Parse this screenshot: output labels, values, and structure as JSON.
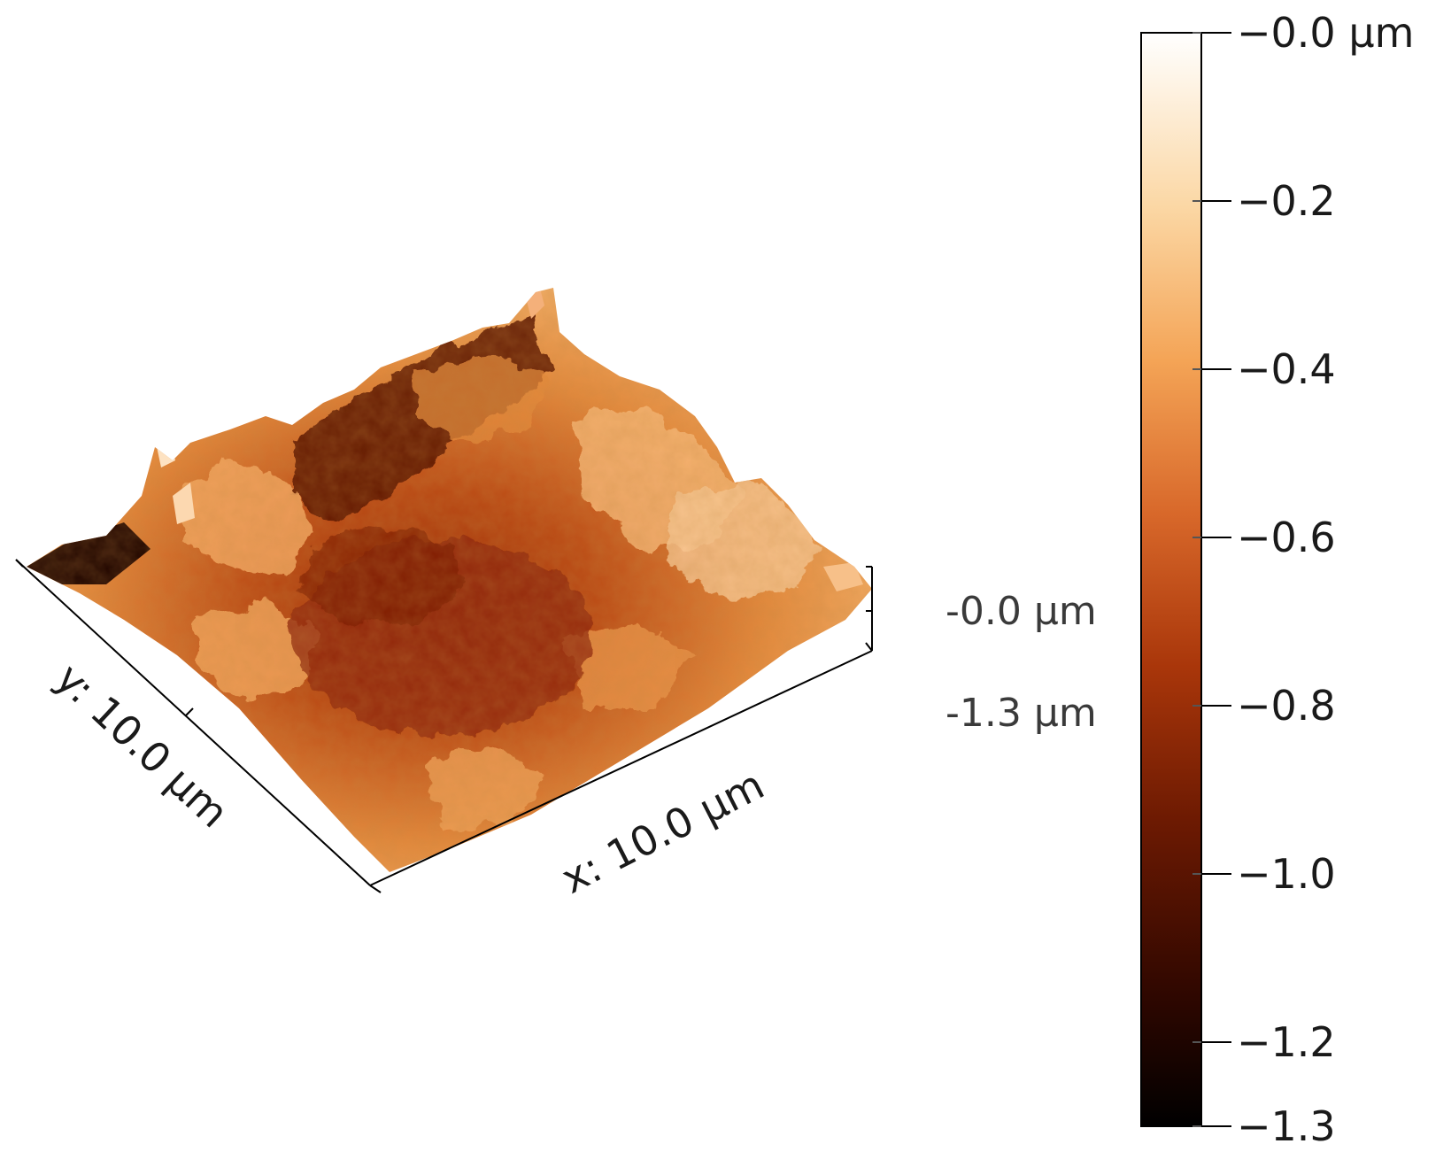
{
  "figure": {
    "x_axis_label": "x: 10.0 µm",
    "y_axis_label": "y: 10.0 µm",
    "z_scale_top": "-0.0 µm",
    "z_scale_bottom": "-1.3 µm"
  },
  "colorbar": {
    "ticks": [
      "−0.0 µm",
      "−0.2",
      "−0.4",
      "−0.6",
      "−0.8",
      "−1.0",
      "−1.2",
      "−1.3"
    ],
    "tick_values": [
      0.0,
      -0.2,
      -0.4,
      -0.6,
      -0.8,
      -1.0,
      -1.2,
      -1.3
    ],
    "range": [
      -1.3,
      0.0
    ],
    "colormap": [
      "#000000",
      "#3a0a00",
      "#7a1e02",
      "#b8420e",
      "#e07a2e",
      "#f6b062",
      "#fbdcae",
      "#ffffff"
    ]
  },
  "colors": {
    "dark_brown": "#2a0800",
    "mid_orange": "#c1561c",
    "light_orange": "#f2a25a",
    "pale": "#fde7c8"
  }
}
